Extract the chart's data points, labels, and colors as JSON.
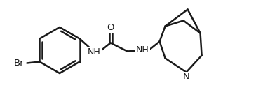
{
  "bg": "#ffffff",
  "fc": "#1a1a1a",
  "lw": 1.8,
  "fs": 9.0,
  "figsize": [
    3.85,
    1.52
  ],
  "dpi": 100,
  "xlim": [
    0,
    385
  ],
  "ylim": [
    0,
    152
  ]
}
